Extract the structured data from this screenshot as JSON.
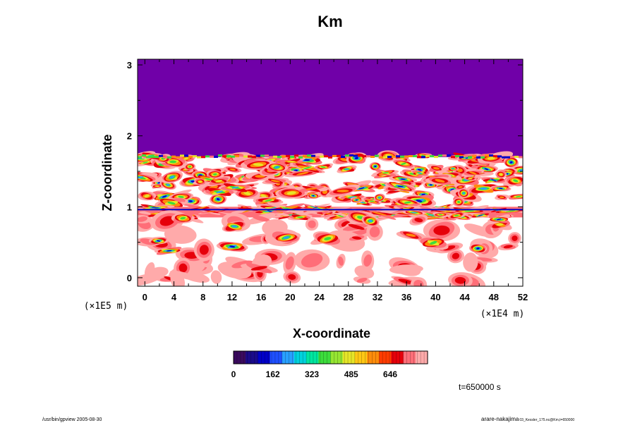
{
  "chart_data": {
    "type": "heatmap",
    "title": "Km",
    "xlabel": "X-coordinate",
    "ylabel": "Z-coordinate",
    "x_scale_label": "(×1E4 m)",
    "y_scale_label": "(×1E5 m)",
    "xlim": [
      -1,
      52
    ],
    "ylim": [
      -0.12,
      3.08
    ],
    "x_ticks": [
      0,
      4,
      8,
      12,
      16,
      20,
      24,
      28,
      32,
      36,
      40,
      44,
      48,
      52
    ],
    "y_ticks": [
      0,
      1,
      2,
      3
    ],
    "colorbar": {
      "ticks": [
        0,
        162,
        323,
        485,
        646
      ],
      "min": 0,
      "max": 800,
      "colors": [
        "#3a0a5e",
        "#1a0a8a",
        "#0000c8",
        "#1e50ff",
        "#28a0ff",
        "#00d2dc",
        "#00e6a0",
        "#3cdc3c",
        "#96e632",
        "#e6e628",
        "#ffc814",
        "#ff8c0a",
        "#ff3c00",
        "#e6000a",
        "#ff6e78",
        "#ffaaaa"
      ]
    },
    "regions": {
      "upper_uniform": {
        "z_from": 1.72,
        "z_to": 3.08,
        "value": 0
      },
      "turbulent_band": {
        "z_from": 1.05,
        "z_to": 1.72
      },
      "thin_layer": {
        "z_from": 0.85,
        "z_to": 1.0
      },
      "lower_patchy": {
        "z_from": -0.12,
        "z_to": 0.85
      }
    }
  },
  "time_label": "t=650000 s",
  "footer_left": "/usr/bin/gpview 2005-08-30",
  "footer_right": "arare-nakajima",
  "footer_right_small": "03_Kessler_175.nc@Km,t=650000"
}
